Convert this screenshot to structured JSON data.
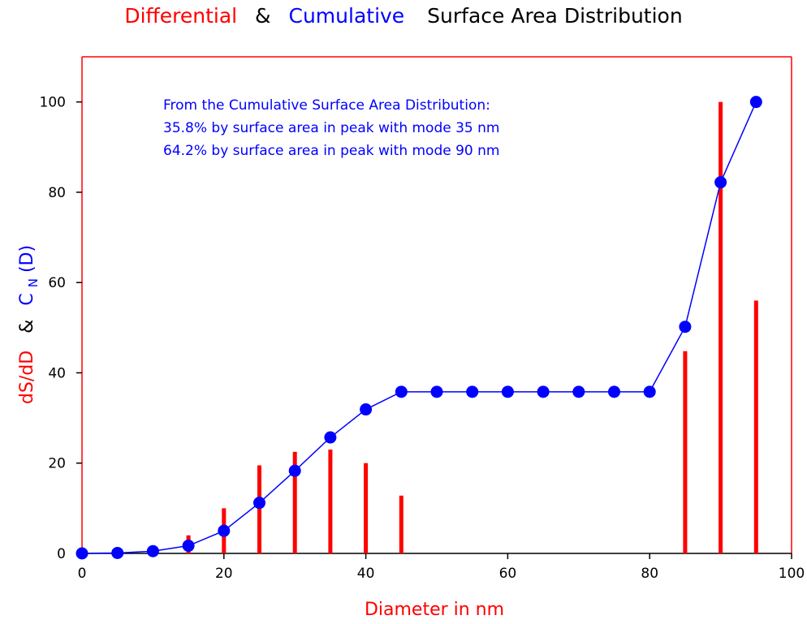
{
  "chart_data": {
    "type": "bar+line",
    "title": {
      "part1": "Differential",
      "part2": "&",
      "part3": "Cumulative",
      "part4": "Surface Area Distribution"
    },
    "xlabel": "Diameter in nm",
    "ylabel": {
      "part1": "dS/dD",
      "part2": "&",
      "part3": "C",
      "part3_sub": "N",
      "part4": "(D)"
    },
    "xlim": [
      0,
      100
    ],
    "ylim": [
      0,
      110
    ],
    "xticks": [
      0,
      20,
      40,
      60,
      80,
      100
    ],
    "yticks": [
      0,
      20,
      40,
      60,
      80,
      100
    ],
    "grid": false,
    "colors": {
      "differential": "#ff0000",
      "cumulative": "#0000ff",
      "frame": "#ff0000"
    },
    "annotation": [
      "From the Cumulative Surface Area Distribution:",
      "35.8% by surface area in peak with mode 35 nm",
      "64.2% by surface area in peak with mode 90 nm"
    ],
    "series": [
      {
        "name": "Differential",
        "kind": "bar",
        "x": [
          15,
          20,
          25,
          30,
          35,
          40,
          45,
          85,
          90,
          95
        ],
        "values": [
          4,
          10,
          19.5,
          22.5,
          23,
          20,
          12.8,
          44.8,
          100,
          56
        ]
      },
      {
        "name": "Cumulative",
        "kind": "line",
        "x": [
          0,
          5,
          10,
          15,
          20,
          25,
          30,
          35,
          40,
          45,
          50,
          55,
          60,
          65,
          70,
          75,
          80,
          85,
          90,
          95
        ],
        "values": [
          0,
          0.1,
          0.5,
          1.7,
          5,
          11.2,
          18.3,
          25.7,
          31.9,
          35.8,
          35.8,
          35.8,
          35.8,
          35.8,
          35.8,
          35.8,
          35.8,
          50.2,
          82.2,
          100
        ]
      }
    ]
  }
}
